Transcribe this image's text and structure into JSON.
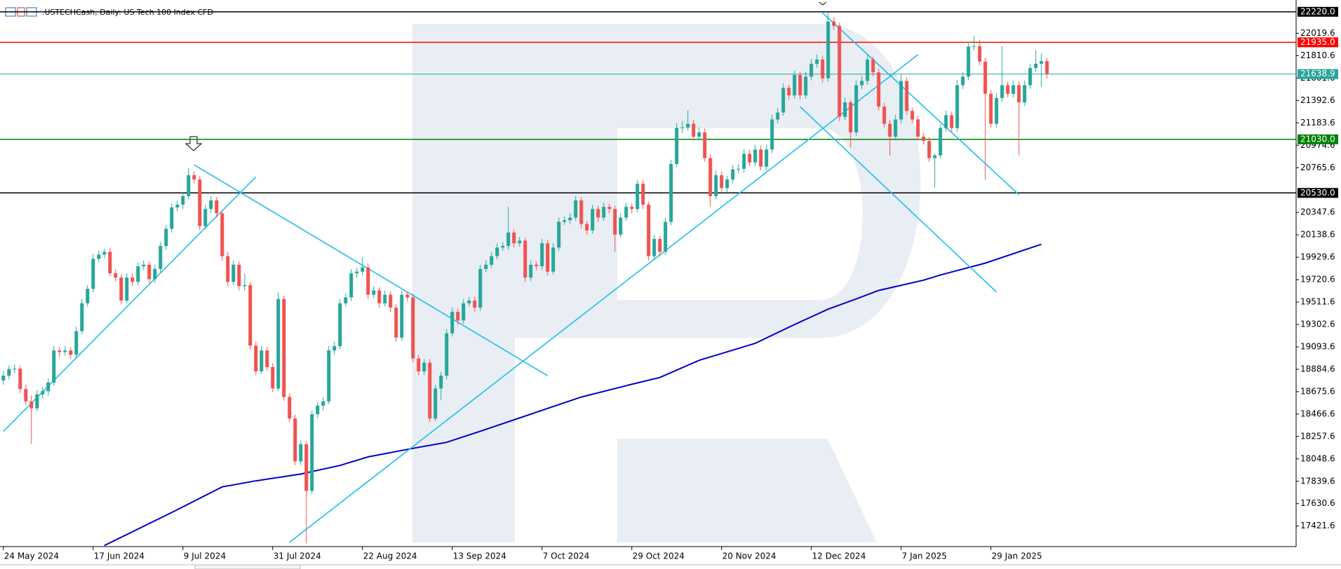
{
  "chart_data": {
    "type": "candlestick",
    "title": ".USTECHCash, Daily:  US Tech 100 Index CFD",
    "xlim": [
      -0.6,
      230.4
    ],
    "ylim": [
      17230,
      22330
    ],
    "up_color": "#26a69a",
    "down_color": "#ef5350",
    "xticks": [
      {
        "value": 0,
        "label": "24 May 2024"
      },
      {
        "value": 16,
        "label": "17 Jun 2024"
      },
      {
        "value": 32,
        "label": "9 Jul 2024"
      },
      {
        "value": 48,
        "label": "31 Jul 2024"
      },
      {
        "value": 64,
        "label": "22 Aug 2024"
      },
      {
        "value": 80,
        "label": "13 Sep 2024"
      },
      {
        "value": 96,
        "label": "7 Oct 2024"
      },
      {
        "value": 112,
        "label": "29 Oct 2024"
      },
      {
        "value": 128,
        "label": "20 Nov 2024"
      },
      {
        "value": 144,
        "label": "12 Dec 2024"
      },
      {
        "value": 160,
        "label": "7 Jan 2025"
      },
      {
        "value": 176,
        "label": "29 Jan 2025"
      }
    ],
    "yticks": [
      22019.6,
      21810.6,
      21601.6,
      21392.6,
      21183.6,
      20974.6,
      20765.6,
      20347.6,
      20138.6,
      19929.6,
      19720.6,
      19511.6,
      19302.6,
      19093.6,
      18884.6,
      18675.6,
      18466.6,
      18257.6,
      18048.6,
      17839.6,
      17630.6,
      17421.6
    ],
    "levels": [
      {
        "value": 22220,
        "label": "22220.0",
        "color": "#000000"
      },
      {
        "value": 21935,
        "label": "21935.0",
        "color": "#ff0000"
      },
      {
        "value": 21638.9,
        "label": "21638.9",
        "color": "#26a69a"
      },
      {
        "value": 21030,
        "label": "21030.0",
        "color": "#008000"
      },
      {
        "value": 20530,
        "label": "20530.0",
        "color": "#000000"
      }
    ],
    "ma": {
      "color": "#0000c8",
      "x": [
        18,
        30,
        39,
        45,
        53,
        60,
        65,
        73,
        79,
        85,
        94,
        103,
        112,
        117,
        124,
        134,
        141,
        147,
        152,
        156,
        164,
        167,
        175,
        185
      ],
      "values": [
        17240,
        17548,
        17787,
        17843,
        17907,
        17987,
        18067,
        18147,
        18203,
        18306,
        18466,
        18625,
        18744,
        18808,
        18968,
        19127,
        19302,
        19445,
        19541,
        19620,
        19716,
        19764,
        19875,
        20051
      ]
    },
    "trendlines": {
      "color": "#1ebef0",
      "lines": [
        [
          0,
          18305,
          45,
          20680
        ],
        [
          34,
          20792,
          97,
          18824
        ],
        [
          51,
          17270,
          163,
          21820
        ],
        [
          146,
          22210,
          181,
          20513
        ],
        [
          142,
          21334,
          177,
          19605
        ]
      ]
    },
    "candles": [
      [
        18780,
        18870,
        18740,
        18825
      ],
      [
        18825,
        18920,
        18790,
        18887
      ],
      [
        18887,
        18930,
        18850,
        18890
      ],
      [
        18890,
        18920,
        18660,
        18700
      ],
      [
        18700,
        18740,
        18550,
        18585
      ],
      [
        18585,
        18640,
        18190,
        18520
      ],
      [
        18520,
        18690,
        18490,
        18650
      ],
      [
        18650,
        18720,
        18610,
        18680
      ],
      [
        18680,
        18800,
        18640,
        18760
      ],
      [
        18760,
        19100,
        18730,
        19060
      ],
      [
        19060,
        19090,
        19000,
        19045
      ],
      [
        19045,
        19100,
        19010,
        19060
      ],
      [
        19060,
        19090,
        18980,
        19020
      ],
      [
        19020,
        19280,
        18990,
        19240
      ],
      [
        19240,
        19540,
        19210,
        19500
      ],
      [
        19500,
        19670,
        19470,
        19635
      ],
      [
        19635,
        19960,
        19600,
        19915
      ],
      [
        19915,
        19990,
        19880,
        19955
      ],
      [
        19955,
        20010,
        19920,
        19980
      ],
      [
        19980,
        20020,
        19750,
        19780
      ],
      [
        19780,
        19820,
        19700,
        19740
      ],
      [
        19740,
        19770,
        19490,
        19525
      ],
      [
        19525,
        19780,
        19500,
        19740
      ],
      [
        19740,
        19780,
        19660,
        19700
      ],
      [
        19700,
        19880,
        19670,
        19845
      ],
      [
        19845,
        19900,
        19810,
        19860
      ],
      [
        19860,
        19890,
        19690,
        19725
      ],
      [
        19725,
        19860,
        19690,
        19820
      ],
      [
        19820,
        20070,
        19790,
        20035
      ],
      [
        20035,
        20230,
        20000,
        20195
      ],
      [
        20195,
        20430,
        20160,
        20395
      ],
      [
        20395,
        20460,
        20360,
        20420
      ],
      [
        20420,
        20540,
        20380,
        20500
      ],
      [
        20500,
        20760,
        20470,
        20695
      ],
      [
        20695,
        20730,
        20620,
        20655
      ],
      [
        20655,
        20690,
        20180,
        20220
      ],
      [
        20220,
        20420,
        20190,
        20380
      ],
      [
        20380,
        20500,
        20340,
        20460
      ],
      [
        20460,
        20490,
        20300,
        20340
      ],
      [
        20340,
        20370,
        19900,
        19940
      ],
      [
        19940,
        19980,
        19660,
        19700
      ],
      [
        19700,
        19900,
        19670,
        19860
      ],
      [
        19860,
        19890,
        19620,
        19660
      ],
      [
        19660,
        19780,
        19620,
        19670
      ],
      [
        19670,
        19700,
        19070,
        19105
      ],
      [
        19105,
        19140,
        18830,
        18865
      ],
      [
        18865,
        19100,
        18840,
        19060
      ],
      [
        19060,
        19090,
        18870,
        18905
      ],
      [
        18905,
        18940,
        18670,
        18705
      ],
      [
        18705,
        19600,
        18680,
        19540
      ],
      [
        19540,
        19570,
        18590,
        18625
      ],
      [
        18625,
        18660,
        18390,
        18425
      ],
      [
        18425,
        18460,
        17990,
        18025
      ],
      [
        18025,
        18220,
        17990,
        18185
      ],
      [
        18185,
        18210,
        17260,
        17750
      ],
      [
        17750,
        18500,
        17720,
        18465
      ],
      [
        18465,
        18580,
        18430,
        18545
      ],
      [
        18545,
        18620,
        18500,
        18585
      ],
      [
        18585,
        19100,
        18560,
        19060
      ],
      [
        19060,
        19140,
        19020,
        19100
      ],
      [
        19100,
        19540,
        19070,
        19500
      ],
      [
        19500,
        19590,
        19470,
        19555
      ],
      [
        19555,
        19820,
        19520,
        19780
      ],
      [
        19780,
        19830,
        19740,
        19795
      ],
      [
        19795,
        19930,
        19760,
        19835
      ],
      [
        19835,
        19870,
        19540,
        19580
      ],
      [
        19580,
        19660,
        19550,
        19620
      ],
      [
        19620,
        19650,
        19460,
        19500
      ],
      [
        19500,
        19620,
        19470,
        19580
      ],
      [
        19580,
        19610,
        19420,
        19460
      ],
      [
        19460,
        19490,
        19140,
        19180
      ],
      [
        19180,
        19620,
        19150,
        19580
      ],
      [
        19580,
        19610,
        19520,
        19555
      ],
      [
        19555,
        19590,
        18950,
        18985
      ],
      [
        18985,
        19020,
        18830,
        18865
      ],
      [
        18865,
        18980,
        18830,
        18945
      ],
      [
        18945,
        18980,
        18390,
        18425
      ],
      [
        18425,
        18740,
        18400,
        18705
      ],
      [
        18705,
        18860,
        18600,
        18825
      ],
      [
        18825,
        19260,
        18790,
        19220
      ],
      [
        19220,
        19460,
        19190,
        19420
      ],
      [
        19420,
        19450,
        19300,
        19340
      ],
      [
        19340,
        19540,
        19310,
        19500
      ],
      [
        19500,
        19560,
        19470,
        19525
      ],
      [
        19525,
        19560,
        19420,
        19460
      ],
      [
        19460,
        19860,
        19430,
        19820
      ],
      [
        19820,
        19900,
        19790,
        19860
      ],
      [
        19860,
        19980,
        19830,
        19940
      ],
      [
        19940,
        20060,
        19910,
        20020
      ],
      [
        20020,
        20070,
        19990,
        20035
      ],
      [
        20035,
        20400,
        20000,
        20160
      ],
      [
        20160,
        20190,
        20020,
        20060
      ],
      [
        20060,
        20120,
        20030,
        20085
      ],
      [
        20085,
        20110,
        19700,
        19740
      ],
      [
        19740,
        19900,
        19710,
        19860
      ],
      [
        19860,
        19890,
        19810,
        19845
      ],
      [
        19845,
        20100,
        19810,
        20060
      ],
      [
        20060,
        20090,
        19760,
        19795
      ],
      [
        19795,
        20060,
        19770,
        20020
      ],
      [
        20020,
        20300,
        19990,
        20260
      ],
      [
        20260,
        20310,
        20230,
        20275
      ],
      [
        20275,
        20340,
        20240,
        20300
      ],
      [
        20300,
        20500,
        20270,
        20460
      ],
      [
        20460,
        20490,
        20200,
        20240
      ],
      [
        20240,
        20270,
        20140,
        20180
      ],
      [
        20180,
        20420,
        20150,
        20380
      ],
      [
        20380,
        20410,
        20260,
        20300
      ],
      [
        20300,
        20440,
        20270,
        20400
      ],
      [
        20400,
        20430,
        20340,
        20380
      ],
      [
        20380,
        20410,
        19980,
        20140
      ],
      [
        20140,
        20340,
        20110,
        20300
      ],
      [
        20300,
        20440,
        20270,
        20400
      ],
      [
        20400,
        20430,
        20340,
        20380
      ],
      [
        20380,
        20650,
        20350,
        20615
      ],
      [
        20615,
        20650,
        20380,
        20420
      ],
      [
        20420,
        20450,
        19900,
        19940
      ],
      [
        19940,
        20140,
        19910,
        20100
      ],
      [
        20100,
        20130,
        19940,
        19980
      ],
      [
        19980,
        20300,
        19950,
        20260
      ],
      [
        20260,
        20840,
        20230,
        20800
      ],
      [
        20800,
        21180,
        20770,
        21135
      ],
      [
        21135,
        21200,
        21090,
        21140
      ],
      [
        21140,
        21300,
        21110,
        21175
      ],
      [
        21175,
        21210,
        21020,
        21055
      ],
      [
        21055,
        21140,
        21020,
        21095
      ],
      [
        21095,
        21130,
        20820,
        20855
      ],
      [
        20855,
        20890,
        20400,
        20500
      ],
      [
        20500,
        20740,
        20470,
        20695
      ],
      [
        20695,
        20730,
        20540,
        20575
      ],
      [
        20575,
        20690,
        20540,
        20655
      ],
      [
        20655,
        20790,
        20620,
        20750
      ],
      [
        20750,
        20800,
        20710,
        20755
      ],
      [
        20755,
        20940,
        20720,
        20895
      ],
      [
        20895,
        20930,
        20780,
        20815
      ],
      [
        20815,
        20980,
        20780,
        20935
      ],
      [
        20935,
        20970,
        20740,
        20775
      ],
      [
        20775,
        20980,
        20740,
        20935
      ],
      [
        20935,
        21260,
        20900,
        21215
      ],
      [
        21215,
        21320,
        21180,
        21280
      ],
      [
        21280,
        21550,
        21250,
        21510
      ],
      [
        21510,
        21540,
        21400,
        21440
      ],
      [
        21440,
        21670,
        21410,
        21630
      ],
      [
        21630,
        21660,
        21400,
        21440
      ],
      [
        21440,
        21660,
        21410,
        21615
      ],
      [
        21615,
        21780,
        21580,
        21735
      ],
      [
        21735,
        21820,
        21700,
        21775
      ],
      [
        21775,
        21810,
        21560,
        21600
      ],
      [
        21600,
        22210,
        21570,
        22130
      ],
      [
        22130,
        22170,
        22050,
        22090
      ],
      [
        22090,
        22120,
        21200,
        21240
      ],
      [
        21240,
        21420,
        21210,
        21375
      ],
      [
        21375,
        21400,
        20950,
        21095
      ],
      [
        21095,
        21580,
        21060,
        21535
      ],
      [
        21535,
        21620,
        21500,
        21575
      ],
      [
        21575,
        21820,
        21540,
        21775
      ],
      [
        21775,
        21800,
        21620,
        21655
      ],
      [
        21655,
        21690,
        21300,
        21335
      ],
      [
        21335,
        21370,
        21140,
        21175
      ],
      [
        21175,
        21210,
        20880,
        21055
      ],
      [
        21055,
        21260,
        21020,
        21215
      ],
      [
        21215,
        21640,
        21180,
        21575
      ],
      [
        21575,
        21610,
        21260,
        21295
      ],
      [
        21295,
        21330,
        21180,
        21215
      ],
      [
        21215,
        21250,
        21020,
        21055
      ],
      [
        21055,
        21090,
        20980,
        21015
      ],
      [
        21015,
        21050,
        20820,
        20855
      ],
      [
        20855,
        20900,
        20580,
        20880
      ],
      [
        20880,
        21170,
        20850,
        21135
      ],
      [
        21135,
        21300,
        21100,
        21255
      ],
      [
        21255,
        21290,
        21100,
        21135
      ],
      [
        21135,
        21580,
        21100,
        21535
      ],
      [
        21535,
        21660,
        21500,
        21615
      ],
      [
        21615,
        21940,
        21580,
        21895
      ],
      [
        21895,
        21990,
        21860,
        21900
      ],
      [
        21900,
        21960,
        21720,
        21755
      ],
      [
        21755,
        21790,
        20650,
        21455
      ],
      [
        21455,
        21490,
        21140,
        21175
      ],
      [
        21175,
        21460,
        21140,
        21415
      ],
      [
        21415,
        21900,
        21380,
        21535
      ],
      [
        21535,
        21570,
        21420,
        21455
      ],
      [
        21455,
        21580,
        21420,
        21535
      ],
      [
        21535,
        21570,
        20880,
        21375
      ],
      [
        21375,
        21580,
        21340,
        21535
      ],
      [
        21535,
        21730,
        21500,
        21695
      ],
      [
        21695,
        21860,
        21660,
        21735
      ],
      [
        21735,
        21830,
        21520,
        21760
      ],
      [
        21760,
        21790,
        21600,
        21638.9
      ]
    ]
  }
}
